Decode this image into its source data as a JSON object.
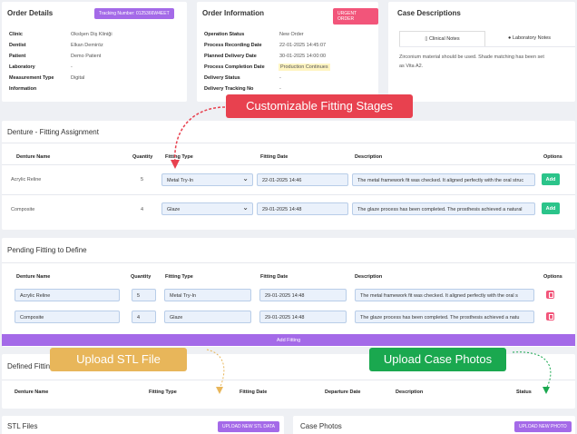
{
  "order_details": {
    "title": "Order Details",
    "tracking": "Tracking Number: 0125366W4EET",
    "rows": [
      {
        "k": "Clinic",
        "v": "Okslşen Diş Kliniği"
      },
      {
        "k": "Dentist",
        "v": "Elkan Demiröz"
      },
      {
        "k": "Patient",
        "v": "Demo Patient"
      },
      {
        "k": "Laboratory",
        "v": "-"
      },
      {
        "k": "Measurement Type",
        "v": "Digital"
      },
      {
        "k": "Information",
        "v": ""
      }
    ]
  },
  "order_info": {
    "title": "Order Information",
    "urgent": "URGENT ORDER",
    "rows": [
      {
        "k": "Operation Status",
        "v": "New Order"
      },
      {
        "k": "Process Recording Date",
        "v": "22-01-2025 14:45:07"
      },
      {
        "k": "Planned Delivery Date",
        "v": "30-01-2025 14:00:00"
      },
      {
        "k": "Process Completion Date",
        "v": "Production Continues"
      },
      {
        "k": "Delivery Status",
        "v": "-"
      },
      {
        "k": "Delivery Tracking No",
        "v": "-"
      }
    ]
  },
  "case_desc": {
    "title": "Case Descriptions",
    "tab1": "Clinical Notes",
    "tab2": "Laboratory Notes",
    "text1": "Zirconium material should be used. Shade matching has been set",
    "text2": "as Vita A2."
  },
  "callouts": {
    "fitting_stages": "Customizable Fitting Stages",
    "upload_stl": "Upload STL File",
    "upload_photos": "Upload Case Photos"
  },
  "fitting_assignment": {
    "title": "Denture - Fitting Assignment",
    "headers": {
      "name": "Denture Name",
      "qty": "Quantity",
      "type": "Fitting Type",
      "date": "Fitting Date",
      "desc": "Description",
      "opt": "Options"
    },
    "rows": [
      {
        "name": "Acrylic Reline",
        "qty": "5",
        "type": "Metal Try-In",
        "date": "22-01-2025 14:46",
        "desc": "The metal framework fit was checked. It aligned perfectly with the oral struc",
        "btn": "Add"
      },
      {
        "name": "Composite",
        "qty": "4",
        "type": "Glaze",
        "date": "29-01-2025 14:48",
        "desc": "The glaze process has been completed. The prosthesis achieved a natural",
        "btn": "Add"
      }
    ]
  },
  "pending": {
    "title": "Pending Fitting to Define",
    "headers": {
      "name": "Denture Name",
      "qty": "Quantity",
      "type": "Fitting Type",
      "date": "Fitting Date",
      "desc": "Description",
      "opt": "Options"
    },
    "rows": [
      {
        "name": "Acrylic Reline",
        "qty": "5",
        "type": "Metal Try-In",
        "date": "29-01-2025 14:48",
        "desc": "The metal framework fit was checked. It aligned perfectly with the oral s"
      },
      {
        "name": "Composite",
        "qty": "4",
        "type": "Glaze",
        "date": "29-01-2025 14:48",
        "desc": "The glaze process has been completed. The prosthesis achieved a natu"
      }
    ],
    "add_btn": "Add Fitting"
  },
  "defined": {
    "title": "Defined Fitting",
    "headers": {
      "name": "Denture Name",
      "type": "Fitting Type",
      "date": "Fitting Date",
      "dep": "Departure Date",
      "desc": "Description",
      "status": "Status"
    }
  },
  "stl": {
    "title": "STL Files",
    "btn": "UPLOAD NEW STL DATA"
  },
  "photos": {
    "title": "Case Photos",
    "btn": "UPLOAD NEW PHOTO"
  },
  "colors": {
    "purple": "#a46ae8",
    "pink": "#f2557a",
    "green": "#2bc48a",
    "red": "#e8414f",
    "yellow": "#e8b65a",
    "callout_green": "#1aa84f"
  }
}
